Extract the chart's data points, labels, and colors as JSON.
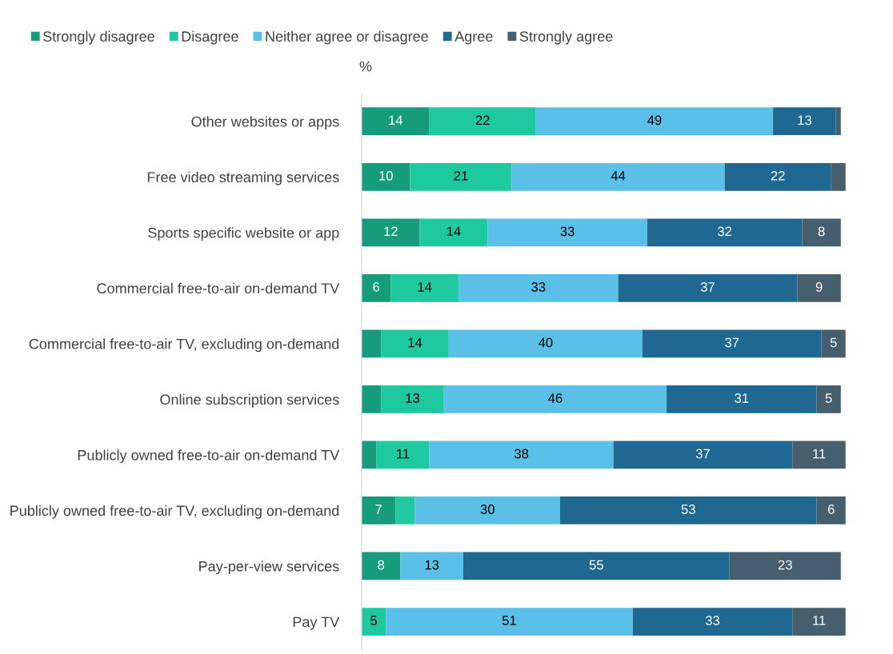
{
  "chart_data": {
    "type": "bar",
    "orientation": "horizontal",
    "stacked": true,
    "xlabel": "%",
    "categories": [
      "Other websites or apps",
      "Free video streaming services",
      "Sports specific website or app",
      "Commercial free-to-air on-demand TV",
      "Commercial free-to-air TV, excluding on-demand",
      "Online subscription services",
      "Publicly owned free-to-air on-demand TV",
      "Publicly owned free-to-air TV, excluding on-demand",
      "Pay-per-view services",
      "Pay TV"
    ],
    "series": [
      {
        "name": "Strongly disagree",
        "color": "#169b7b",
        "values": [
          14,
          10,
          12,
          6,
          4,
          4,
          3,
          7,
          8,
          0
        ],
        "value_labels": [
          "14",
          "10",
          "12",
          "6",
          null,
          null,
          null,
          "7",
          "8",
          null
        ]
      },
      {
        "name": "Disagree",
        "color": "#1fc9a0",
        "values": [
          22,
          21,
          14,
          14,
          14,
          13,
          11,
          4,
          0,
          5
        ],
        "value_labels": [
          "22",
          "21",
          "14",
          "14",
          "14",
          "13",
          "11",
          null,
          null,
          "5"
        ]
      },
      {
        "name": "Neither agree or disagree",
        "color": "#5bc0e8",
        "values": [
          49,
          44,
          33,
          33,
          40,
          46,
          38,
          30,
          13,
          51
        ],
        "value_labels": [
          "49",
          "44",
          "33",
          "33",
          "40",
          "46",
          "38",
          "30",
          "13",
          "51"
        ]
      },
      {
        "name": "Agree",
        "color": "#1f6892",
        "values": [
          13,
          22,
          32,
          37,
          37,
          31,
          37,
          53,
          55,
          33
        ],
        "value_labels": [
          "13",
          "22",
          "32",
          "37",
          "37",
          "31",
          "37",
          "53",
          "55",
          "33"
        ]
      },
      {
        "name": "Strongly agree",
        "color": "#465f6e",
        "values": [
          1,
          3,
          8,
          9,
          5,
          5,
          11,
          6,
          23,
          11
        ],
        "value_labels": [
          null,
          null,
          "8",
          "9",
          "5",
          "5",
          "11",
          "6",
          "23",
          "11"
        ]
      }
    ],
    "xlim": [
      0,
      100
    ],
    "tick_labels": "y",
    "grid": false,
    "legend": "top"
  }
}
